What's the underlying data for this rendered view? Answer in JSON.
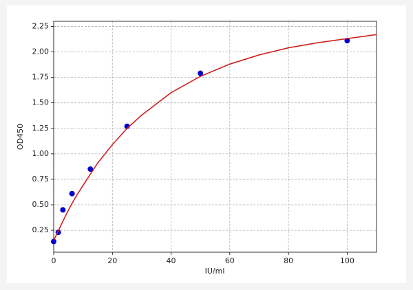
{
  "chart_data": {
    "type": "scatter",
    "xlabel": "IU/ml",
    "ylabel": "OD450",
    "xlim": [
      0,
      110
    ],
    "ylim": [
      0.035,
      2.3
    ],
    "xticks": [
      0,
      20,
      40,
      60,
      80,
      100
    ],
    "yticks": [
      0.25,
      {
        "value": 0.5,
        "label": "0.50"
      },
      0.75,
      {
        "value": 1,
        "label": "1.00"
      },
      1.25,
      {
        "value": 1.5,
        "label": "1.50"
      },
      1.75,
      {
        "value": 2,
        "label": "2.00"
      },
      2.25
    ],
    "grid": true,
    "series": [
      {
        "type": "scatter",
        "color": "#0000cc",
        "x": [
          0,
          1.56,
          3.13,
          6.25,
          12.5,
          25,
          50,
          100
        ],
        "values": [
          0.14,
          0.23,
          0.45,
          0.61,
          0.85,
          1.27,
          1.79,
          2.11
        ]
      },
      {
        "type": "line",
        "color": "#cc2222",
        "x": [
          0,
          2,
          4,
          6,
          8,
          10,
          15,
          20,
          25,
          30,
          40,
          50,
          60,
          70,
          80,
          90,
          100,
          110
        ],
        "values": [
          0.15,
          0.27,
          0.39,
          0.5,
          0.6,
          0.69,
          0.91,
          1.09,
          1.25,
          1.38,
          1.6,
          1.76,
          1.88,
          1.97,
          2.04,
          2.09,
          2.13,
          2.17
        ]
      }
    ]
  }
}
